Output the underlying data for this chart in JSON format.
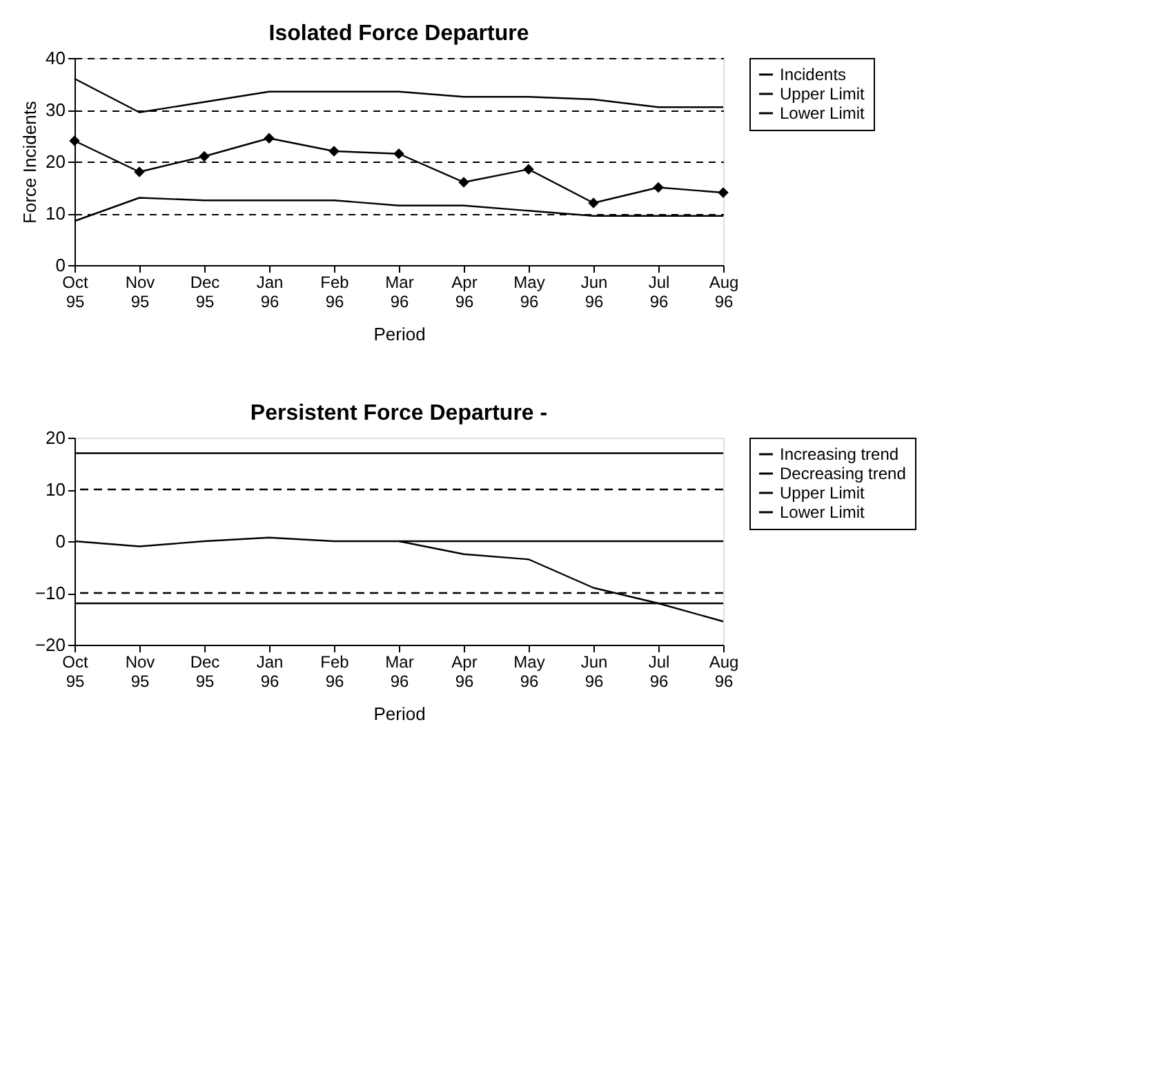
{
  "chart_data": [
    {
      "type": "line",
      "title": "Isolated Force Departure",
      "xlabel": "Period",
      "ylabel": "Force Incidents",
      "categories": [
        "Oct 95",
        "Nov 95",
        "Dec 95",
        "Jan 96",
        "Feb 96",
        "Mar 96",
        "Apr 96",
        "May 96",
        "Jun 96",
        "Jul 96",
        "Aug 96"
      ],
      "series": [
        {
          "name": "Incidents",
          "color": "#000000",
          "marker": "diamond",
          "values": [
            24,
            18,
            21,
            24.5,
            22,
            21.5,
            16,
            18.5,
            12,
            15,
            14
          ]
        },
        {
          "name": "Upper Limit",
          "color": "#000000",
          "values": [
            36,
            29.5,
            31.5,
            33.5,
            33.5,
            33.5,
            32.5,
            32.5,
            32,
            30.5,
            30.5
          ]
        },
        {
          "name": "Lower Limit",
          "color": "#000000",
          "values": [
            8.5,
            13,
            12.5,
            12.5,
            12.5,
            11.5,
            11.5,
            10.5,
            9.5,
            9.5,
            9.5
          ]
        }
      ],
      "ylim": [
        0,
        40
      ],
      "yticks": [
        0,
        10,
        20,
        30,
        40
      ],
      "grid": "y",
      "legend": "right",
      "marker": "none",
      "line_style": "solid"
    },
    {
      "type": "line",
      "title": "Persistent Force Departure -",
      "xlabel": "Period",
      "categories": [
        "Oct 95",
        "Nov 95",
        "Dec 95",
        "Jan 96",
        "Feb 96",
        "Mar 96",
        "Apr 96",
        "May 96",
        "Jun 96",
        "Jul 96",
        "Aug 96"
      ],
      "series": [
        {
          "name": "Increasing trend",
          "color": "#000000",
          "values": [
            0,
            -1,
            0,
            0.7,
            0,
            0,
            0,
            0,
            0,
            0,
            0
          ]
        },
        {
          "name": "Decreasing trend",
          "color": "#000000",
          "values": [
            null,
            null,
            null,
            null,
            null,
            0,
            -2.5,
            -3.5,
            -9,
            -12,
            -15.5
          ]
        },
        {
          "name": "Upper Limit",
          "color": "#000000",
          "values": [
            17,
            17,
            17,
            17,
            17,
            17,
            17,
            17,
            17,
            17,
            17
          ]
        },
        {
          "name": "Lower Limit",
          "color": "#000000",
          "values": [
            -12,
            -12,
            -12,
            -12,
            -12,
            -12,
            -12,
            -12,
            -12,
            -12,
            -12
          ]
        }
      ],
      "ylim": [
        -20,
        20
      ],
      "yticks": [
        -20,
        -10,
        0,
        10,
        20
      ],
      "legend": "right",
      "marker": "none",
      "line_style": "solid",
      "ref_lines": [
        {
          "axis": "y",
          "value": 10,
          "color": "#000000",
          "line_style": "dashed"
        },
        {
          "axis": "y",
          "value": -10,
          "color": "#000000",
          "line_style": "dashed"
        }
      ]
    }
  ]
}
